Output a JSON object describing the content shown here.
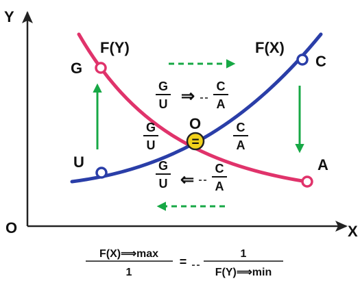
{
  "axes": {
    "y_label": "Y",
    "x_label": "X",
    "origin_label": "O"
  },
  "curves": {
    "fy": {
      "label": "F(Y)",
      "color": "#e0336b"
    },
    "fx": {
      "label": "F(X)",
      "color": "#2a3ea8"
    }
  },
  "points": {
    "g": "G",
    "u": "U",
    "c": "C",
    "a": "A",
    "o": "O",
    "o_symbol": "="
  },
  "fractions": {
    "top_left": {
      "num": "G",
      "den": "U"
    },
    "top_right": {
      "num": "C",
      "den": "A"
    },
    "mid_left": {
      "num": "G",
      "den": "U"
    },
    "mid_right": {
      "num": "C",
      "den": "A"
    },
    "bottom_left": {
      "num": "G",
      "den": "U"
    },
    "bottom_right": {
      "num": "C",
      "den": "A"
    },
    "top_arrow": "⇒",
    "bottom_arrow": "⇐"
  },
  "formula": {
    "left_num": "F(X)⟹max",
    "left_den": "1",
    "equals": "=",
    "right_num": "1",
    "right_den": "F(Y)⟹min"
  },
  "colors": {
    "arrow_green": "#17a845",
    "marker_fill": "#f2d21b"
  }
}
